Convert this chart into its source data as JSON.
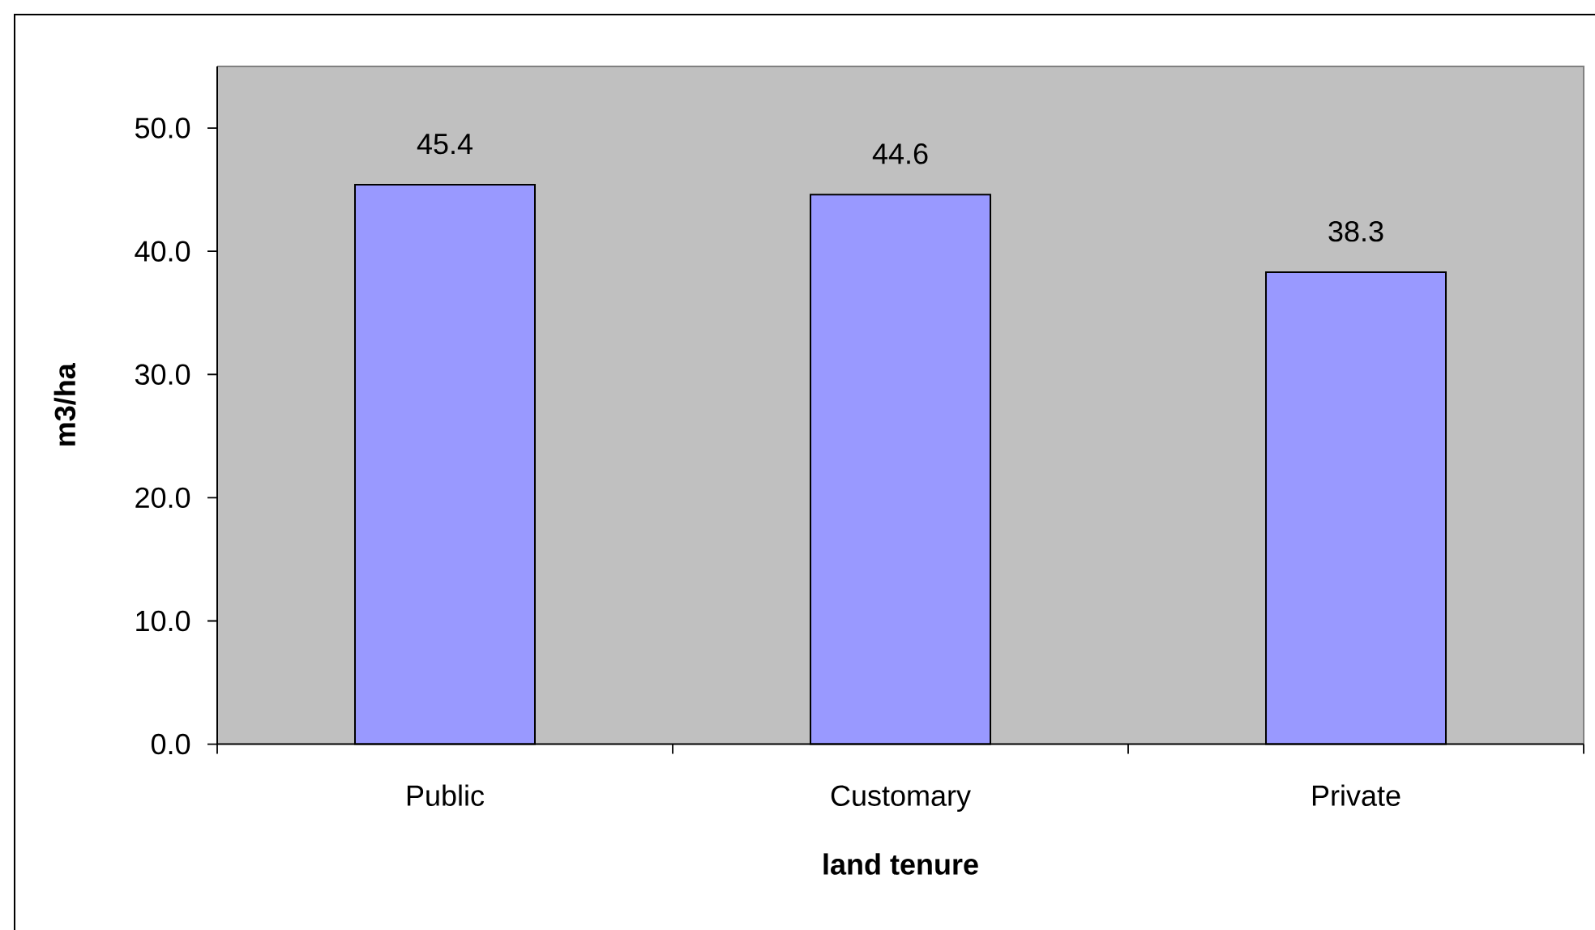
{
  "chart_data": {
    "type": "bar",
    "xlabel": "land tenure",
    "ylabel": "m3/ha",
    "categories": [
      "Public",
      "Customary",
      "Private"
    ],
    "values": [
      45.4,
      44.6,
      38.3
    ],
    "color": "#9999ff",
    "ylim": [
      0,
      55
    ],
    "yticks": [
      {
        "value": 0,
        "label": "0.0"
      },
      {
        "value": 10,
        "label": "10.0"
      },
      {
        "value": 20,
        "label": "20.0"
      },
      {
        "value": 30,
        "label": "30.0"
      },
      {
        "value": 40,
        "label": "40.0"
      },
      {
        "value": 50,
        "label": "50.0"
      }
    ],
    "data_labels": true
  }
}
